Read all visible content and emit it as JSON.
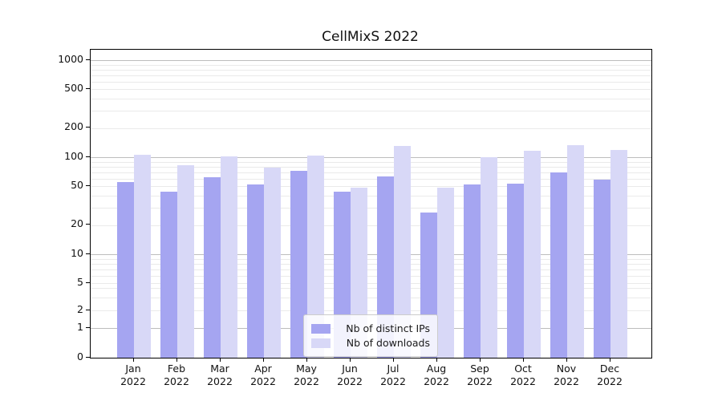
{
  "title": "CellMixS 2022",
  "legend": {
    "items": [
      {
        "label": "Nb of distinct IPs",
        "color": "#a5a5f1"
      },
      {
        "label": "Nb of downloads",
        "color": "#d8d8f7"
      }
    ]
  },
  "chart_data": {
    "type": "bar",
    "title": "CellMixS 2022",
    "scale": "log-like (0,1,2,5,10,20,50,100,200,500,1000)",
    "categories": [
      "Jan 2022",
      "Feb 2022",
      "Mar 2022",
      "Apr 2022",
      "May 2022",
      "Jun 2022",
      "Jul 2022",
      "Aug 2022",
      "Sep 2022",
      "Oct 2022",
      "Nov 2022",
      "Dec 2022"
    ],
    "month_labels": [
      "Jan",
      "Feb",
      "Mar",
      "Apr",
      "May",
      "Jun",
      "Jul",
      "Aug",
      "Sep",
      "Oct",
      "Nov",
      "Dec"
    ],
    "year_label": "2022",
    "series": [
      {
        "name": "Nb of distinct IPs",
        "color": "#a5a5f1",
        "values": [
          56,
          44,
          62,
          52,
          73,
          44,
          64,
          27,
          52,
          53,
          70,
          59
        ]
      },
      {
        "name": "Nb of downloads",
        "color": "#d8d8f7",
        "values": [
          105,
          82,
          102,
          78,
          103,
          49,
          131,
          49,
          101,
          117,
          132,
          118
        ]
      }
    ],
    "yticks": [
      0,
      1,
      2,
      5,
      10,
      20,
      50,
      100,
      200,
      500,
      1000
    ],
    "major_gridline_values": [
      1,
      10,
      100,
      1000
    ],
    "ylim": [
      0,
      1280
    ],
    "legend_position": "lower center",
    "grid": true,
    "colors": {
      "major_grid": "#bdbdbd",
      "minor_grid": "#eaeaea",
      "axis": "#000000"
    }
  }
}
